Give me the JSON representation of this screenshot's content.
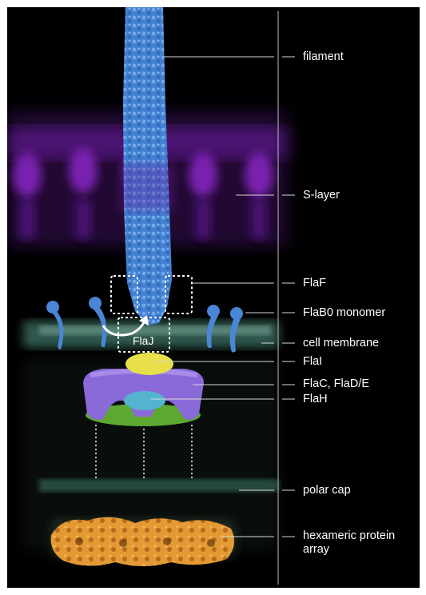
{
  "labels": {
    "filament": "filament",
    "s_layer": "S-layer",
    "flaf": "FlaF",
    "flab0": "FlaB0 monomer",
    "cell_membrane": "cell membrane",
    "flai": "FlaI",
    "flacde": "FlaC, FlaD/E",
    "flah": "FlaH",
    "polar_cap": "polar cap",
    "hexameric": "hexameric protein array",
    "flaj": "FlaJ"
  },
  "colors": {
    "background": "#000000",
    "filament": "#4a86d6",
    "s_layer": "#7a1fb0",
    "membrane": "#3c6e62",
    "flai": "#e8e04a",
    "flacde": "#8a6ad8",
    "flah": "#54b4d0",
    "green_ring": "#5ca830",
    "polar_cap": "#2f5a48",
    "hexameric": "#e39a34",
    "leader_lines": "#d8d8d8"
  }
}
